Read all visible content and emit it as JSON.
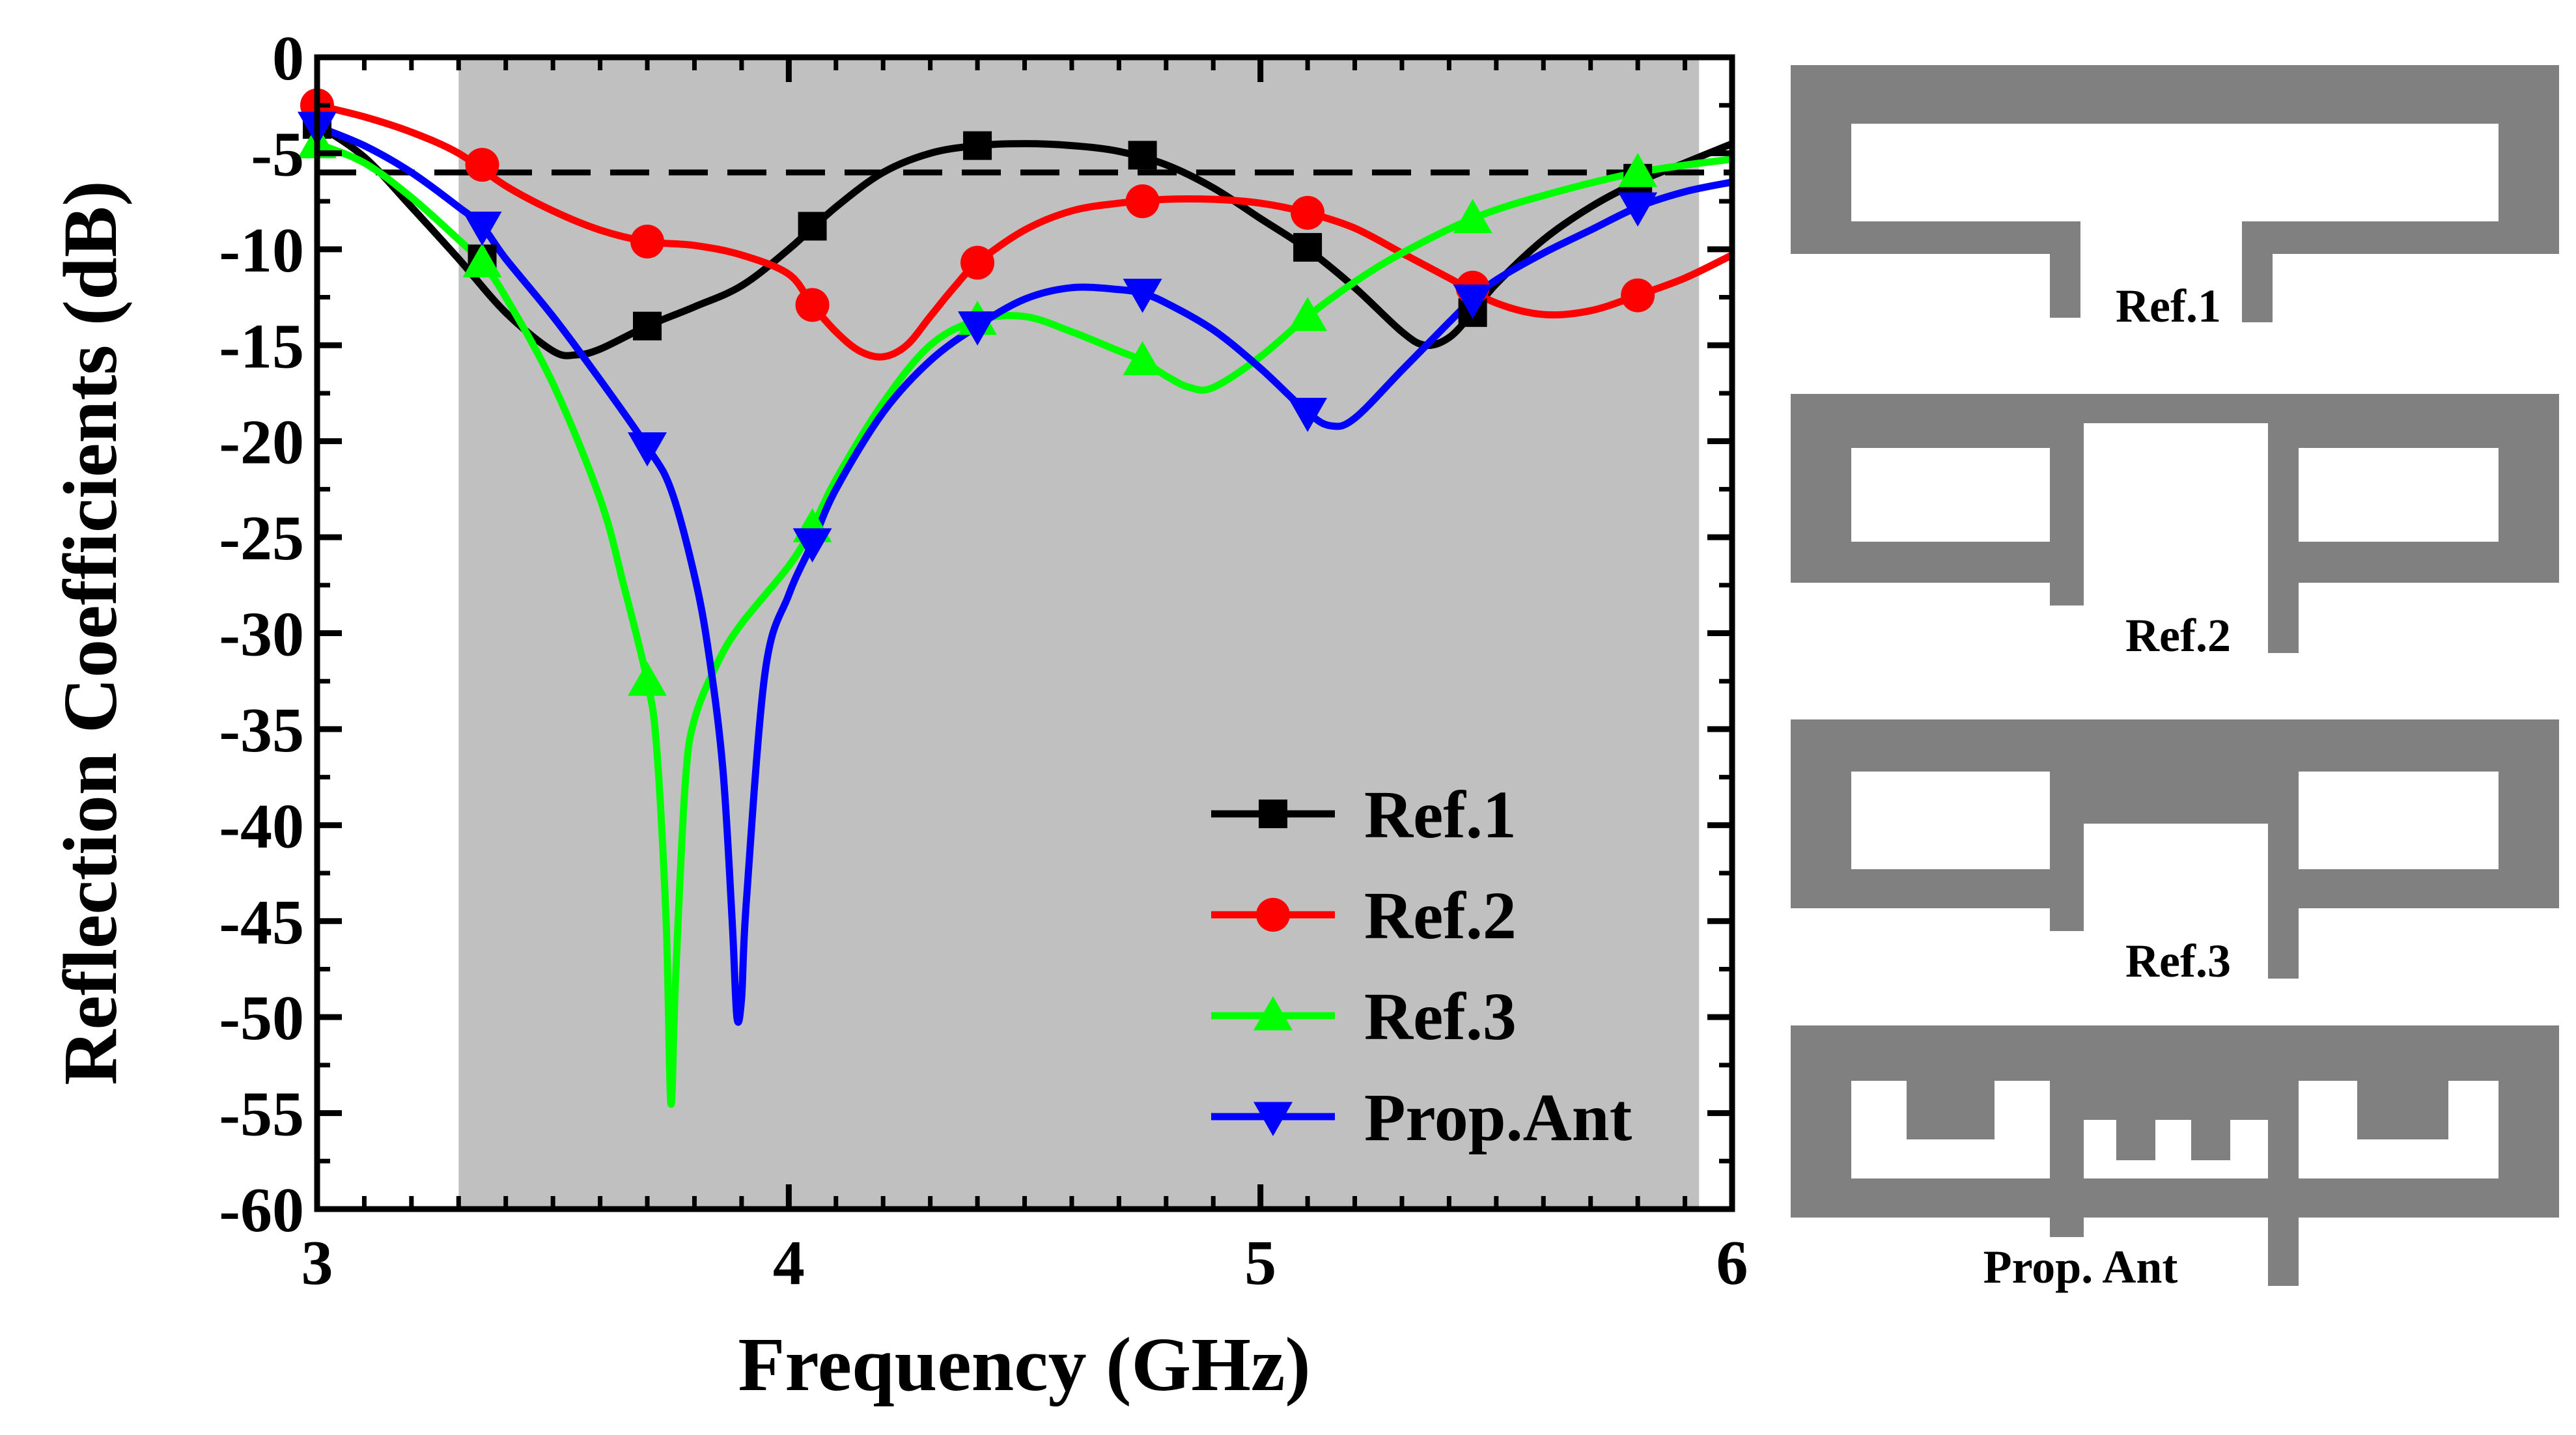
{
  "chart_data": {
    "type": "line",
    "xlabel": "Frequency (GHz)",
    "ylabel": "Reflection Coefficients (dB)",
    "xlim": [
      3,
      6
    ],
    "ylim": [
      -60,
      0
    ],
    "x_ticks": [
      "3",
      "4",
      "5",
      "6"
    ],
    "y_ticks": [
      "0",
      "-5",
      "-10",
      "-15",
      "-20",
      "-25",
      "-30",
      "-35",
      "-40",
      "-45",
      "-50",
      "-55",
      "-60"
    ],
    "shaded_band": [
      3.3,
      5.93
    ],
    "reference_line": -6,
    "legend_position": "bottom-right",
    "series": [
      {
        "name": "Ref.1",
        "color": "#000000",
        "marker": "square",
        "curve": [
          [
            3.0,
            -3.5
          ],
          [
            3.1,
            -5.2
          ],
          [
            3.2,
            -7.8
          ],
          [
            3.3,
            -10.5
          ],
          [
            3.4,
            -13.3
          ],
          [
            3.5,
            -15.3
          ],
          [
            3.55,
            -15.5
          ],
          [
            3.6,
            -15.2
          ],
          [
            3.7,
            -14.0
          ],
          [
            3.8,
            -13.0
          ],
          [
            3.9,
            -11.9
          ],
          [
            4.0,
            -10.0
          ],
          [
            4.1,
            -7.8
          ],
          [
            4.2,
            -6.0
          ],
          [
            4.3,
            -5.0
          ],
          [
            4.4,
            -4.6
          ],
          [
            4.5,
            -4.5
          ],
          [
            4.6,
            -4.6
          ],
          [
            4.7,
            -4.9
          ],
          [
            4.8,
            -5.6
          ],
          [
            4.9,
            -6.8
          ],
          [
            5.0,
            -8.4
          ],
          [
            5.1,
            -10.0
          ],
          [
            5.2,
            -12.0
          ],
          [
            5.3,
            -14.3
          ],
          [
            5.35,
            -15.0
          ],
          [
            5.4,
            -14.6
          ],
          [
            5.45,
            -13.3
          ],
          [
            5.5,
            -11.8
          ],
          [
            5.6,
            -9.5
          ],
          [
            5.7,
            -7.8
          ],
          [
            5.8,
            -6.5
          ],
          [
            5.9,
            -5.5
          ],
          [
            6.0,
            -4.5
          ]
        ],
        "markers_x": [
          3.0,
          3.35,
          3.7,
          4.05,
          4.4,
          4.75,
          5.1,
          5.45,
          5.8
        ],
        "markers_y": [
          -3.5,
          -10.5,
          -14.0,
          -8.8,
          -4.6,
          -5.1,
          -9.9,
          -13.3,
          -6.3
        ]
      },
      {
        "name": "Ref.2",
        "color": "#ff0000",
        "marker": "circle",
        "curve": [
          [
            3.0,
            -2.5
          ],
          [
            3.1,
            -3.1
          ],
          [
            3.2,
            -3.9
          ],
          [
            3.3,
            -5.0
          ],
          [
            3.4,
            -6.7
          ],
          [
            3.5,
            -8.0
          ],
          [
            3.6,
            -9.0
          ],
          [
            3.7,
            -9.6
          ],
          [
            3.8,
            -9.8
          ],
          [
            3.9,
            -10.3
          ],
          [
            4.0,
            -11.3
          ],
          [
            4.05,
            -12.9
          ],
          [
            4.1,
            -14.3
          ],
          [
            4.15,
            -15.3
          ],
          [
            4.2,
            -15.6
          ],
          [
            4.25,
            -15.0
          ],
          [
            4.3,
            -13.5
          ],
          [
            4.35,
            -12.0
          ],
          [
            4.4,
            -10.7
          ],
          [
            4.5,
            -9.0
          ],
          [
            4.6,
            -8.0
          ],
          [
            4.7,
            -7.6
          ],
          [
            4.8,
            -7.4
          ],
          [
            4.9,
            -7.4
          ],
          [
            5.0,
            -7.6
          ],
          [
            5.1,
            -8.1
          ],
          [
            5.2,
            -8.9
          ],
          [
            5.3,
            -10.2
          ],
          [
            5.4,
            -11.5
          ],
          [
            5.5,
            -12.8
          ],
          [
            5.6,
            -13.4
          ],
          [
            5.7,
            -13.2
          ],
          [
            5.8,
            -12.4
          ],
          [
            5.9,
            -11.5
          ],
          [
            6.0,
            -10.3
          ]
        ],
        "markers_x": [
          3.0,
          3.35,
          3.7,
          4.05,
          4.4,
          4.75,
          5.1,
          5.45,
          5.8
        ],
        "markers_y": [
          -2.5,
          -5.6,
          -9.6,
          -12.9,
          -10.7,
          -7.5,
          -8.1,
          -12.0,
          -12.4
        ]
      },
      {
        "name": "Ref.3",
        "color": "#00ff00",
        "marker": "triangle-up",
        "curve": [
          [
            3.0,
            -4.5
          ],
          [
            3.1,
            -5.5
          ],
          [
            3.2,
            -7.3
          ],
          [
            3.3,
            -9.5
          ],
          [
            3.35,
            -10.7
          ],
          [
            3.4,
            -12.5
          ],
          [
            3.5,
            -17.0
          ],
          [
            3.6,
            -23.0
          ],
          [
            3.65,
            -27.5
          ],
          [
            3.7,
            -32.5
          ],
          [
            3.72,
            -36.0
          ],
          [
            3.74,
            -45.0
          ],
          [
            3.75,
            -54.5
          ],
          [
            3.76,
            -48.0
          ],
          [
            3.78,
            -38.0
          ],
          [
            3.8,
            -34.5
          ],
          [
            3.85,
            -31.5
          ],
          [
            3.9,
            -29.5
          ],
          [
            4.0,
            -26.5
          ],
          [
            4.05,
            -24.5
          ],
          [
            4.1,
            -22.0
          ],
          [
            4.2,
            -18.0
          ],
          [
            4.3,
            -15.0
          ],
          [
            4.4,
            -13.7
          ],
          [
            4.5,
            -13.5
          ],
          [
            4.6,
            -14.3
          ],
          [
            4.7,
            -15.3
          ],
          [
            4.75,
            -15.8
          ],
          [
            4.8,
            -16.6
          ],
          [
            4.85,
            -17.2
          ],
          [
            4.9,
            -17.2
          ],
          [
            5.0,
            -15.6
          ],
          [
            5.1,
            -13.5
          ],
          [
            5.2,
            -11.7
          ],
          [
            5.3,
            -10.2
          ],
          [
            5.45,
            -8.4
          ],
          [
            5.6,
            -7.2
          ],
          [
            5.8,
            -6.0
          ],
          [
            6.0,
            -5.3
          ]
        ],
        "markers_x": [
          3.0,
          3.35,
          3.7,
          4.05,
          4.4,
          4.75,
          5.1,
          5.45,
          5.8
        ],
        "markers_y": [
          -4.5,
          -10.7,
          -32.5,
          -24.5,
          -13.7,
          -15.8,
          -13.5,
          -8.4,
          -6.0
        ]
      },
      {
        "name": "Prop.Ant",
        "color": "#0000ff",
        "marker": "triangle-down",
        "curve": [
          [
            3.0,
            -3.6
          ],
          [
            3.1,
            -4.6
          ],
          [
            3.2,
            -6.0
          ],
          [
            3.3,
            -7.8
          ],
          [
            3.35,
            -8.8
          ],
          [
            3.4,
            -10.5
          ],
          [
            3.5,
            -13.5
          ],
          [
            3.6,
            -16.8
          ],
          [
            3.7,
            -20.3
          ],
          [
            3.75,
            -22.5
          ],
          [
            3.8,
            -27.0
          ],
          [
            3.83,
            -31.0
          ],
          [
            3.86,
            -37.0
          ],
          [
            3.88,
            -45.0
          ],
          [
            3.89,
            -50.0
          ],
          [
            3.9,
            -49.0
          ],
          [
            3.91,
            -44.0
          ],
          [
            3.95,
            -32.0
          ],
          [
            4.0,
            -28.0
          ],
          [
            4.05,
            -25.3
          ],
          [
            4.1,
            -22.5
          ],
          [
            4.2,
            -18.5
          ],
          [
            4.3,
            -15.8
          ],
          [
            4.4,
            -14.0
          ],
          [
            4.5,
            -12.6
          ],
          [
            4.6,
            -12.0
          ],
          [
            4.7,
            -12.1
          ],
          [
            4.75,
            -12.3
          ],
          [
            4.8,
            -12.8
          ],
          [
            4.9,
            -14.2
          ],
          [
            5.0,
            -16.2
          ],
          [
            5.1,
            -18.5
          ],
          [
            5.15,
            -19.2
          ],
          [
            5.2,
            -18.8
          ],
          [
            5.3,
            -16.3
          ],
          [
            5.4,
            -13.8
          ],
          [
            5.45,
            -12.6
          ],
          [
            5.5,
            -11.6
          ],
          [
            5.6,
            -10.2
          ],
          [
            5.7,
            -9.0
          ],
          [
            5.8,
            -7.8
          ],
          [
            5.9,
            -7.0
          ],
          [
            6.0,
            -6.5
          ]
        ],
        "markers_x": [
          3.0,
          3.35,
          3.7,
          4.05,
          4.4,
          4.75,
          5.1,
          5.45,
          5.8
        ],
        "markers_y": [
          -3.6,
          -8.8,
          -20.3,
          -25.3,
          -14.0,
          -12.3,
          -18.5,
          -12.6,
          -7.8
        ]
      }
    ]
  },
  "antenna_panels": {
    "fill_color": "#808080",
    "labels": [
      "Ref.1",
      "Ref.2",
      "Ref.3",
      "Prop. Ant"
    ]
  }
}
